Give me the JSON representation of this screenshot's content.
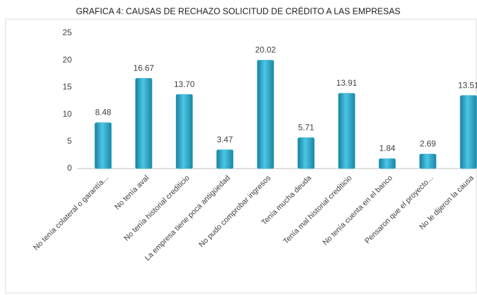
{
  "chart_data": {
    "type": "bar",
    "title": "GRAFICA 4: CAUSAS DE RECHAZO SOLICITUD DE CRÉDITO A LAS EMPRESAS",
    "categories": [
      "No tenía colateral o garantía...",
      "No tenía aval",
      "No tenía historial crediticio",
      "La empresa tiene poca antigüedad",
      "No pudo comprobar ingresos",
      "Tenía mucha deuda",
      "Tenía mal historial crediticio",
      "No tenía cuenta en el banco",
      "Pensaron que el proyecto...",
      "No le dijeron la causa"
    ],
    "values": [
      8.48,
      16.67,
      13.7,
      3.47,
      20.02,
      5.71,
      13.91,
      1.84,
      2.69,
      13.51
    ],
    "value_labels": [
      "8.48",
      "16.67",
      "13.70",
      "3.47",
      "20.02",
      "5.71",
      "13.91",
      "1.84",
      "2.69",
      "13.51"
    ],
    "color": "#2ab0d2",
    "ylim": [
      0,
      25
    ],
    "yticks": [
      0,
      5,
      10,
      15,
      20,
      25
    ],
    "grid": false
  }
}
